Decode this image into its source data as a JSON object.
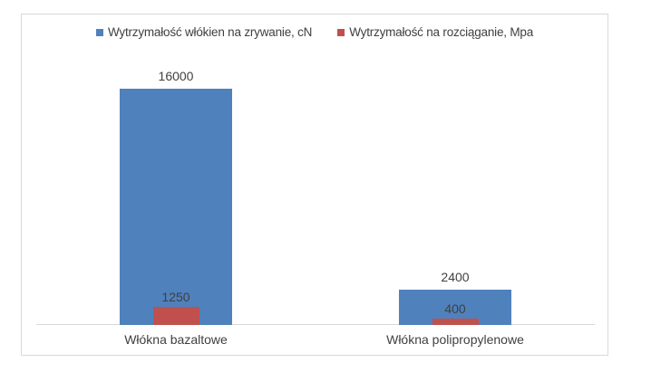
{
  "chart_data": {
    "type": "bar",
    "categories": [
      "Włókna bazaltowe",
      "Włókna polipropylenowe"
    ],
    "series": [
      {
        "name": "Wytrzymałość włókien na zrywanie, cN",
        "color": "#4F81BD",
        "values": [
          16000,
          2400
        ],
        "data_labels": [
          "16000",
          "2400"
        ]
      },
      {
        "name": "Wytrzymałość na rozciąganie, Mpa",
        "color": "#C0504D",
        "values": [
          1250,
          400
        ],
        "data_labels": [
          "1250",
          "400"
        ]
      }
    ],
    "title": "",
    "xlabel": "",
    "ylabel": "",
    "ylim": [
      0,
      16000
    ],
    "grid": false,
    "legend_position": "top-center",
    "colors": {
      "series1": "#4F81BD",
      "series2": "#C0504D",
      "label_text": "#404040",
      "axis_line": "#D9D9D9",
      "frame_border": "#D9D9D9"
    }
  }
}
